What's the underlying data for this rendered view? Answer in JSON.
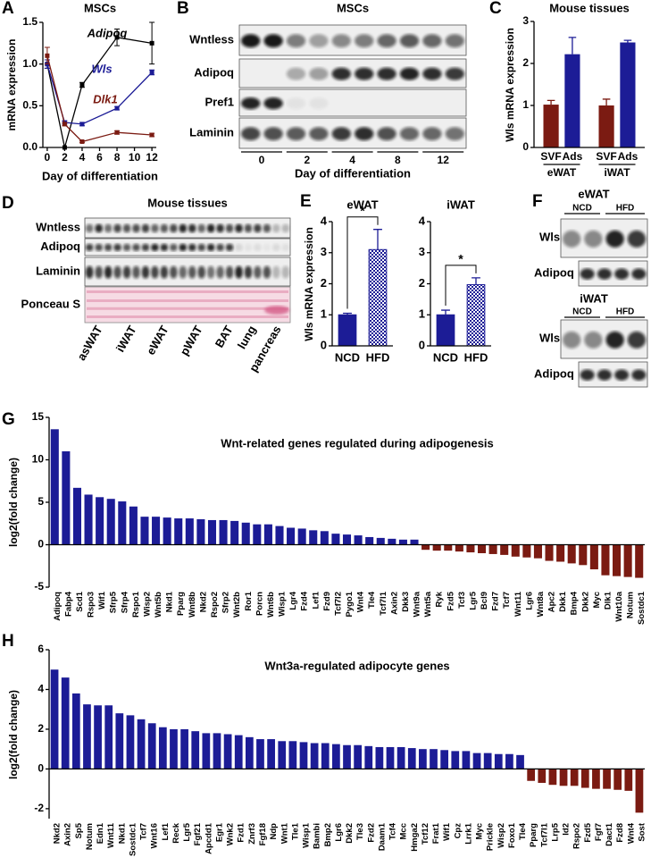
{
  "chart_data": [
    {
      "type": "line",
      "panel": "A",
      "title": "MSCs",
      "xlabel": "Day of differentiation",
      "ylabel": "mRNA expression",
      "x": [
        0,
        2,
        4,
        8,
        12
      ],
      "xlim": [
        -0.5,
        12.5
      ],
      "xticks": [
        0,
        2,
        4,
        6,
        8,
        10,
        12
      ],
      "ylim": [
        0,
        1.5
      ],
      "yticks": [
        {
          "value": 0,
          "label": "0.0"
        },
        0.5,
        {
          "value": 1,
          "label": "1.0"
        },
        1.5
      ],
      "series": [
        {
          "name": "Adipoq",
          "color": "#000000",
          "values": [
            1.0,
            0.0,
            0.75,
            1.32,
            1.25
          ],
          "errors": [
            0.05,
            0.0,
            0.03,
            0.1,
            0.25
          ]
        },
        {
          "name": "Wls",
          "color": "#1c1c96",
          "values": [
            1.0,
            0.3,
            0.28,
            0.47,
            0.9
          ],
          "errors": [
            0.05,
            0.02,
            0.02,
            0.02,
            0.03
          ]
        },
        {
          "name": "Dlk1",
          "color": "#7b1b12",
          "values": [
            1.1,
            0.28,
            0.07,
            0.18,
            0.15
          ],
          "errors": [
            0.1,
            0.02,
            0.01,
            0.02,
            0.02
          ]
        }
      ]
    },
    {
      "type": "bar",
      "panel": "C",
      "title": "Mouse tissues",
      "ylabel": "Wls mRNA expression",
      "categories": [
        "SVF",
        "Ads",
        "SVF",
        "Ads"
      ],
      "groups": [
        "eWAT",
        "iWAT"
      ],
      "values": [
        1.02,
        2.22,
        1.0,
        2.5
      ],
      "errors": [
        0.1,
        0.4,
        0.15,
        0.05
      ],
      "colors": [
        "#7b1b12",
        "#1c1c96",
        "#7b1b12",
        "#1c1c96"
      ],
      "ylim": [
        0,
        3
      ],
      "yticks": [
        0,
        1,
        2,
        3
      ]
    },
    {
      "type": "bar",
      "panel": "E",
      "title": "eWAT",
      "ylabel": "Wls mRNA expression",
      "categories": [
        "NCD",
        "HFD"
      ],
      "values": [
        1.0,
        3.1
      ],
      "errors": [
        0.05,
        0.65
      ],
      "color": "#1c1c96",
      "hatched": [
        false,
        true
      ],
      "annotation": "*",
      "ylim": [
        0,
        4
      ],
      "yticks": [
        0,
        1,
        2,
        3,
        4
      ]
    },
    {
      "type": "bar",
      "title": "iWAT",
      "categories": [
        "NCD",
        "HFD"
      ],
      "values": [
        1.0,
        1.97
      ],
      "errors": [
        0.15,
        0.22
      ],
      "color": "#1c1c96",
      "hatched": [
        false,
        true
      ],
      "annotation": "*",
      "ylim": [
        0,
        4
      ],
      "yticks": [
        0,
        1,
        2,
        3,
        4
      ]
    },
    {
      "type": "bar",
      "panel": "G",
      "title": "Wnt-related genes regulated during adipogenesis",
      "ylabel": "log2(fold change)",
      "categories": [
        "Adipoq",
        "Fabp4",
        "Scd1",
        "Rspo3",
        "Wif1",
        "Sfrp5",
        "Sfrp4",
        "Rspo1",
        "Wisp2",
        "Wnt5b",
        "Nkd1",
        "Pparg",
        "Wnt8b",
        "Nkd2",
        "Rspo2",
        "Sfrp2",
        "Wnt2b",
        "Ror1",
        "Porcn",
        "Wnt6b",
        "Wisp1",
        "Lgr4",
        "Fzd4",
        "Lef1",
        "Fzd9",
        "Tcf7l2",
        "Pygo1",
        "Wnt4",
        "Tle4",
        "Tcf7l1",
        "Axin2",
        "Dkk3",
        "Wnt9a",
        "Wnt5a",
        "Ryk",
        "Fzd5",
        "Tcf3",
        "Lgr5",
        "Bcl9",
        "Fzd7",
        "Tcf7",
        "Wnt11",
        "Lgr6",
        "Wnt8a",
        "Apc2",
        "Dkk1",
        "Bmp4",
        "Dkk2",
        "Myc",
        "Dlk1",
        "Wnt10a",
        "Notum",
        "Sostdc1"
      ],
      "values": [
        13.6,
        11,
        6.7,
        5.9,
        5.6,
        5.4,
        5.1,
        4.5,
        3.3,
        3.3,
        3.2,
        3.1,
        3.1,
        3.0,
        2.9,
        2.9,
        2.8,
        2.6,
        2.4,
        2.4,
        2.2,
        2.0,
        1.9,
        1.7,
        1.6,
        1.3,
        1.2,
        1.1,
        0.9,
        0.8,
        0.7,
        0.6,
        0.6,
        -0.6,
        -0.7,
        -0.7,
        -0.8,
        -0.9,
        -1.0,
        -1.1,
        -1.2,
        -1.4,
        -1.5,
        -1.6,
        -1.9,
        -2.0,
        -2.2,
        -2.4,
        -2.9,
        -3.6,
        -3.7,
        -3.8,
        -3.9
      ],
      "positive_color": "#1c1c96",
      "negative_color": "#7b1b12",
      "ylim": [
        -5,
        15
      ],
      "yticks": [
        -5,
        0,
        5,
        10,
        15
      ]
    },
    {
      "type": "bar",
      "panel": "H",
      "title": "Wnt3a-regulated adipocyte genes",
      "ylabel": "log2(fold change)",
      "categories": [
        "Nkd2",
        "Axin2",
        "Sp5",
        "Notum",
        "Edn1",
        "Wnt11",
        "Nkd1",
        "Sostdc1",
        "Tcf7",
        "Wnt16",
        "Lef1",
        "Reck",
        "Lgr5",
        "Fgf21",
        "Apcdd1",
        "Egr1",
        "Wnk2",
        "Fzd1",
        "Znrf3",
        "Fgf18",
        "Ndp",
        "Wnt1",
        "Tle1",
        "Wisp1",
        "Bambi",
        "Bmp2",
        "Lgr6",
        "Dkk2",
        "Tle3",
        "Fzd2",
        "Daam1",
        "Tcf4",
        "Mcc",
        "Hmga2",
        "Tcf12",
        "Frat1",
        "Wif1",
        "Cpz",
        "Lrrk1",
        "Myc",
        "Prickle",
        "Wisp2",
        "Foxo1",
        "Tle4",
        "Pparg",
        "Tcf7l1",
        "Lrp5",
        "Id2",
        "Rspo2",
        "Fzd5",
        "Fgf7",
        "Dact1",
        "Fzd8",
        "Wnt4",
        "Sost"
      ],
      "values": [
        5.0,
        4.6,
        3.8,
        3.25,
        3.2,
        3.2,
        2.8,
        2.7,
        2.5,
        2.3,
        2.1,
        2.0,
        2.0,
        1.9,
        1.8,
        1.8,
        1.75,
        1.7,
        1.6,
        1.5,
        1.5,
        1.4,
        1.4,
        1.35,
        1.3,
        1.3,
        1.25,
        1.2,
        1.2,
        1.15,
        1.1,
        1.1,
        1.1,
        1.05,
        1.0,
        1.0,
        0.95,
        0.9,
        0.9,
        0.8,
        0.8,
        0.75,
        0.75,
        0.7,
        -0.6,
        -0.7,
        -0.8,
        -0.85,
        -0.85,
        -0.95,
        -1.0,
        -1.0,
        -1.05,
        -1.1,
        -2.2
      ],
      "positive_color": "#1c1c96",
      "negative_color": "#7b1b12",
      "ylim": [
        -2.5,
        6
      ],
      "yticks": [
        -2,
        0,
        2,
        4,
        6
      ]
    }
  ],
  "blots": [
    {
      "panel": "B",
      "title": "MSCs",
      "rows": [
        "Wntless",
        "Adipoq",
        "Pref1",
        "Laminin"
      ],
      "lanes": [
        "0",
        "2",
        "4",
        "8",
        "12"
      ],
      "xlabel": "Day of differentiation"
    },
    {
      "panel": "D",
      "title": "Mouse tissues",
      "rows": [
        "Wntless",
        "Adipoq",
        "Laminin",
        "Ponceau S"
      ],
      "lanes": [
        "asWAT",
        "iWAT",
        "eWAT",
        "pWAT",
        "BAT",
        "lung",
        "pancreas"
      ]
    },
    {
      "panel": "F",
      "sections": [
        {
          "title": "eWAT",
          "groups": [
            "NCD",
            "HFD"
          ],
          "rows": [
            "Wls",
            "Adipoq"
          ]
        },
        {
          "title": "iWAT",
          "groups": [
            "NCD",
            "HFD"
          ],
          "rows": [
            "Wls",
            "Adipoq"
          ]
        }
      ]
    }
  ]
}
